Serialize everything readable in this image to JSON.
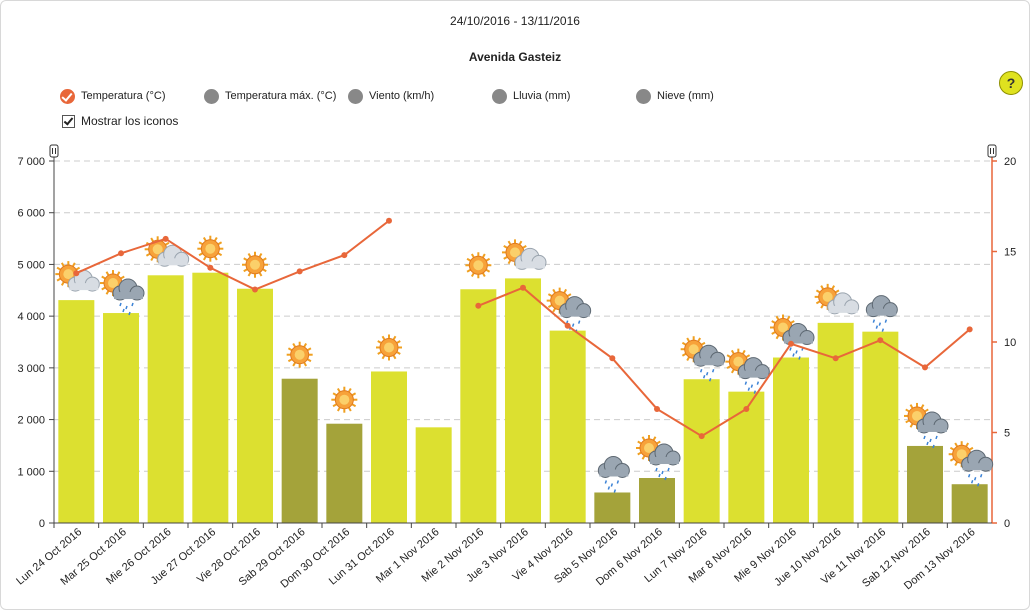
{
  "header": {
    "date_range": "24/10/2016 - 13/11/2016",
    "title": "Avenida Gasteiz"
  },
  "legend": [
    {
      "label": "Temperatura (°C)",
      "active": true
    },
    {
      "label": "Temperatura máx. (°C)",
      "active": false
    },
    {
      "label": "Viento (km/h)",
      "active": false
    },
    {
      "label": "Lluvia (mm)",
      "active": false
    },
    {
      "label": "Nieve (mm)",
      "active": false
    }
  ],
  "options": {
    "show_icons_label": "Mostrar los iconos",
    "show_icons_checked": true
  },
  "help": {
    "label": "?"
  },
  "colors": {
    "bar_light": "#dce030",
    "bar_dark": "#a4a33a",
    "line": "#e8673a",
    "grid": "#cccccc",
    "legend_active": "#e8673a",
    "legend_inactive": "#888888"
  },
  "chart_data": {
    "type": "bar",
    "categories": [
      "Lun 24 Oct 2016",
      "Mar 25 Oct 2016",
      "Mie 26 Oct 2016",
      "Jue 27 Oct 2016",
      "Vie 28 Oct 2016",
      "Sab 29 Oct 2016",
      "Dom 30 Oct 2016",
      "Lun 31 Oct 2016",
      "Mar 1 Nov 2016",
      "Mie 2 Nov 2016",
      "Jue 3 Nov 2016",
      "Vie 4 Nov 2016",
      "Sab 5 Nov 2016",
      "Dom 6 Nov 2016",
      "Lun 7 Nov 2016",
      "Mar 8 Nov 2016",
      "Mie 9 Nov 2016",
      "Jue 10 Nov 2016",
      "Vie 11 Nov 2016",
      "Sab 12 Nov 2016",
      "Dom 13 Nov 2016"
    ],
    "bars": {
      "values": [
        4310,
        4060,
        4790,
        4840,
        4530,
        2790,
        1920,
        2930,
        1850,
        4520,
        4730,
        3720,
        590,
        870,
        2780,
        2540,
        3200,
        3870,
        3700,
        1490,
        750
      ],
      "weekend": [
        false,
        false,
        false,
        false,
        false,
        true,
        true,
        false,
        false,
        false,
        false,
        false,
        true,
        true,
        false,
        false,
        false,
        false,
        false,
        true,
        true
      ],
      "ylim": [
        0,
        7000
      ],
      "yticks": [
        0,
        1000,
        2000,
        3000,
        4000,
        5000,
        6000,
        7000
      ],
      "ytick_labels": [
        "0",
        "1 000",
        "2 000",
        "3 000",
        "4 000",
        "5 000",
        "6 000",
        "7 000"
      ]
    },
    "series": [
      {
        "name": "Temperatura (°C)",
        "axis": "right",
        "values": [
          13.8,
          14.9,
          15.7,
          14.1,
          12.9,
          13.9,
          14.8,
          16.7,
          null,
          12.0,
          13.0,
          10.9,
          9.1,
          6.3,
          4.8,
          6.3,
          9.9,
          9.1,
          10.1,
          8.6,
          10.7
        ]
      }
    ],
    "y2lim": [
      0,
      20
    ],
    "y2ticks": [
      0,
      5,
      10,
      15,
      20
    ],
    "weather_icons": [
      "sun-cloud",
      "sun-cloud-rain",
      "sun-cloud",
      "sun",
      "sun",
      "sun",
      "sun",
      "sun",
      "none",
      "sun",
      "sun-cloud",
      "sun-cloud-rain",
      "cloud-rain",
      "sun-cloud-rain",
      "sun-cloud-rain",
      "sun-cloud-rain",
      "sun-cloud-rain",
      "sun-cloud",
      "cloud-rain",
      "sun-cloud-rain",
      "sun-cloud-rain"
    ],
    "grid": true
  }
}
